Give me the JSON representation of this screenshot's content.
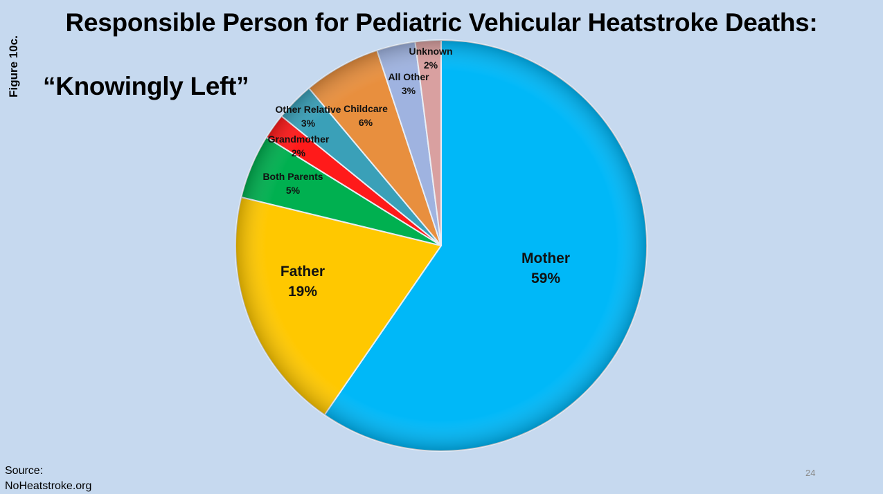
{
  "slide": {
    "figure_label": "Figure 10c.",
    "source_label": "Source:",
    "source_name": "NoHeatstroke.org",
    "page_number": "24"
  },
  "chart_data": {
    "type": "pie",
    "title": "Responsible Person for Pediatric Vehicular Heatstroke Deaths:",
    "subtitle": "“Knowingly Left”",
    "slices": [
      {
        "label": "Mother",
        "value": 59,
        "display": "59%",
        "color": "#00b8f8"
      },
      {
        "label": "Father",
        "value": 19,
        "display": "19%",
        "color": "#ffc800"
      },
      {
        "label": "Both Parents",
        "value": 5,
        "display": "5%",
        "color": "#00b050"
      },
      {
        "label": "Grandmother",
        "value": 2,
        "display": "2%",
        "color": "#ff1a1a"
      },
      {
        "label": "Other Relative",
        "value": 3,
        "display": "3%",
        "color": "#3aa0b8"
      },
      {
        "label": "Childcare",
        "value": 6,
        "display": "6%",
        "color": "#e88f3e"
      },
      {
        "label": "All Other",
        "value": 3,
        "display": "3%",
        "color": "#9fb3e0"
      },
      {
        "label": "Unknown",
        "value": 2,
        "display": "2%",
        "color": "#d9a0a0"
      }
    ]
  }
}
